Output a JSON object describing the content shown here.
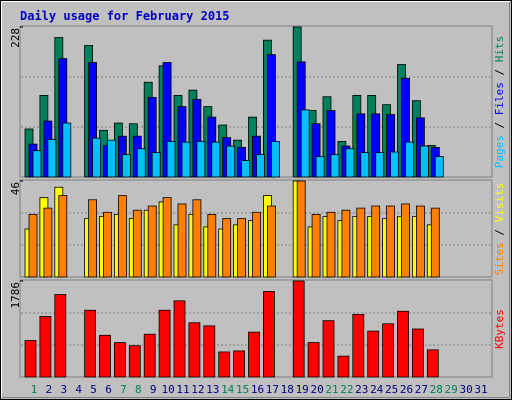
{
  "title": "Daily usage for February 2015",
  "legend_separator": " / ",
  "chart_data": [
    {
      "type": "bar",
      "ylim": [
        0,
        228
      ],
      "yticks": [
        228
      ],
      "grid": true,
      "series": [
        {
          "name": "Pages",
          "color": "#00c0ff",
          "values": [
            40,
            57,
            82,
            0,
            59,
            56,
            34,
            43,
            37,
            54,
            53,
            54,
            53,
            47,
            25,
            34,
            54,
            0,
            102,
            31,
            34,
            43,
            37,
            37,
            38,
            53,
            47,
            31,
            0,
            0,
            0
          ]
        },
        {
          "name": "Files",
          "color": "#0000ff",
          "values": [
            50,
            85,
            180,
            0,
            174,
            48,
            62,
            62,
            121,
            174,
            107,
            118,
            91,
            60,
            45,
            62,
            186,
            0,
            175,
            81,
            101,
            47,
            96,
            96,
            95,
            150,
            90,
            45,
            0,
            0,
            0
          ]
        },
        {
          "name": "Hits",
          "color": "#00805c",
          "values": [
            73,
            124,
            212,
            0,
            200,
            71,
            82,
            81,
            144,
            169,
            124,
            132,
            107,
            79,
            56,
            91,
            208,
            0,
            228,
            101,
            122,
            54,
            124,
            124,
            110,
            171,
            116,
            48,
            0,
            0,
            0
          ]
        }
      ]
    },
    {
      "type": "bar",
      "ylim": [
        0,
        46
      ],
      "yticks": [
        46
      ],
      "grid": true,
      "series": [
        {
          "name": "Sites",
          "color": "#ff8000",
          "values": [
            30,
            33,
            39,
            0,
            37,
            31,
            39,
            32,
            34,
            38,
            35,
            37,
            30,
            28,
            28,
            31,
            34,
            0,
            46,
            30,
            31,
            32,
            33,
            34,
            34,
            35,
            34,
            33,
            0,
            0,
            0
          ]
        },
        {
          "name": "Visits",
          "color": "#ffff00",
          "values": [
            23,
            38,
            43,
            0,
            28,
            29,
            30,
            28,
            32,
            36,
            25,
            30,
            24,
            23,
            25,
            27,
            39,
            0,
            46,
            24,
            29,
            27,
            29,
            29,
            28,
            29,
            29,
            25,
            0,
            0,
            0
          ]
        }
      ]
    },
    {
      "type": "bar",
      "ylim": [
        0,
        1786
      ],
      "yticks": [
        1786
      ],
      "grid": true,
      "categories": [
        "1",
        "2",
        "3",
        "4",
        "5",
        "6",
        "7",
        "8",
        "9",
        "10",
        "11",
        "12",
        "13",
        "14",
        "15",
        "16",
        "17",
        "18",
        "19",
        "20",
        "21",
        "22",
        "23",
        "24",
        "25",
        "26",
        "27",
        "28",
        "29",
        "30",
        "31"
      ],
      "category_colors": [
        "#00805c",
        "#000080",
        "#000080",
        "#000080",
        "#000080",
        "#000080",
        "#00805c",
        "#00805c",
        "#000080",
        "#000080",
        "#000080",
        "#000080",
        "#000080",
        "#00805c",
        "#00805c",
        "#000080",
        "#000080",
        "#000080",
        "#000080",
        "#000080",
        "#00805c",
        "#00805c",
        "#000080",
        "#000080",
        "#000080",
        "#000080",
        "#000080",
        "#00805c",
        "#00805c",
        "#000080",
        "#000080"
      ],
      "series": [
        {
          "name": "KBytes",
          "color": "#ff0000",
          "values": [
            679,
            1126,
            1534,
            0,
            1242,
            776,
            641,
            582,
            796,
            1242,
            1417,
            1009,
            951,
            466,
            485,
            835,
            1592,
            0,
            1786,
            641,
            1048,
            388,
            1165,
            854,
            990,
            1223,
            893,
            505,
            0,
            0,
            0
          ]
        }
      ]
    }
  ]
}
